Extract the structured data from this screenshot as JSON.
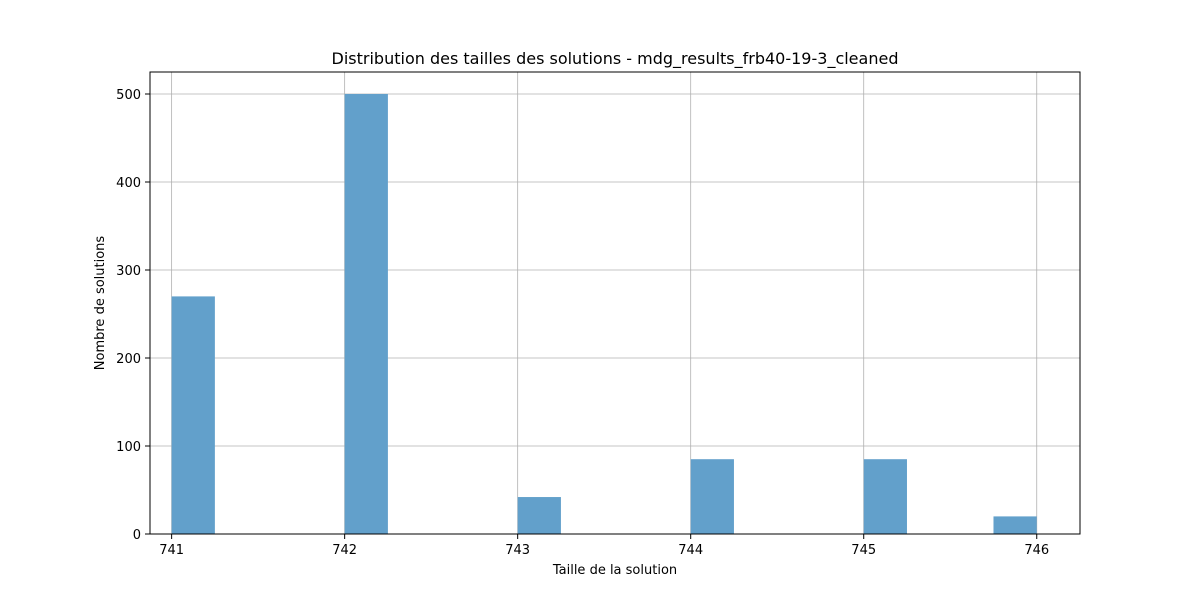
{
  "chart_data": {
    "type": "bar",
    "title": "Distribution des tailles des solutions - mdg_results_frb40-19-3_cleaned",
    "xlabel": "Taille de la solution",
    "ylabel": "Nombre de solutions",
    "bins": [
      {
        "start": 741.0,
        "end": 741.25,
        "count": 270
      },
      {
        "start": 742.0,
        "end": 742.25,
        "count": 500
      },
      {
        "start": 743.0,
        "end": 743.25,
        "count": 42
      },
      {
        "start": 744.0,
        "end": 744.25,
        "count": 85
      },
      {
        "start": 745.0,
        "end": 745.25,
        "count": 85
      },
      {
        "start": 745.75,
        "end": 746.0,
        "count": 20
      }
    ],
    "xlim": [
      740.875,
      746.25
    ],
    "ylim": [
      0,
      525
    ],
    "x_ticks": [
      741,
      742,
      743,
      744,
      745,
      746
    ],
    "y_ticks": [
      0,
      100,
      200,
      300,
      400,
      500
    ],
    "grid": true,
    "legend": "none",
    "bar_color": "#62a0cb",
    "grid_color": "#b0b0b0"
  }
}
